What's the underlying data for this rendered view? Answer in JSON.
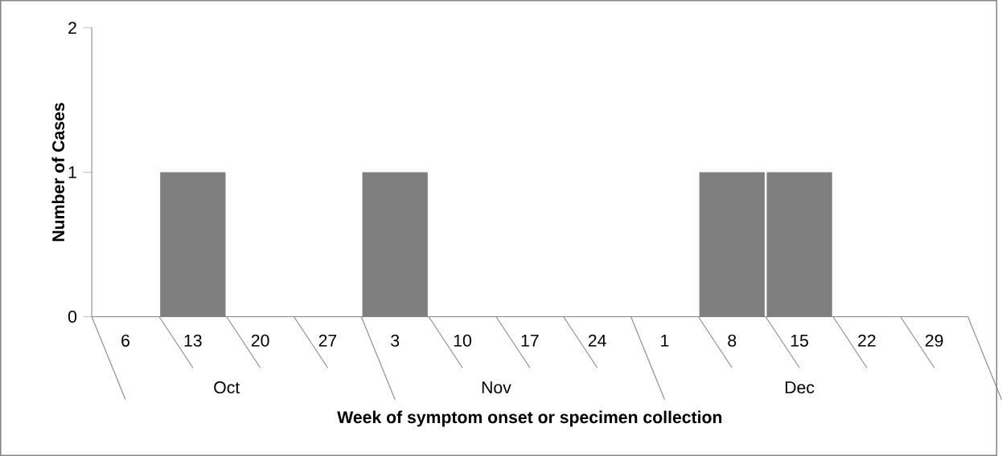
{
  "chart_data": {
    "type": "bar",
    "categories": [
      "6",
      "13",
      "20",
      "27",
      "3",
      "10",
      "17",
      "24",
      "1",
      "8",
      "15",
      "22",
      "29"
    ],
    "values": [
      0,
      1,
      0,
      0,
      1,
      0,
      0,
      0,
      0,
      1,
      1,
      0,
      0
    ],
    "color": "#7f7f7f",
    "ylim": [
      0,
      2
    ],
    "yticks": [
      0,
      1,
      2
    ],
    "xlabel": "Week of symptom onset or specimen collection",
    "ylabel": "Number of Cases",
    "annotations": [
      "Oct",
      "Nov",
      "Dec"
    ]
  }
}
